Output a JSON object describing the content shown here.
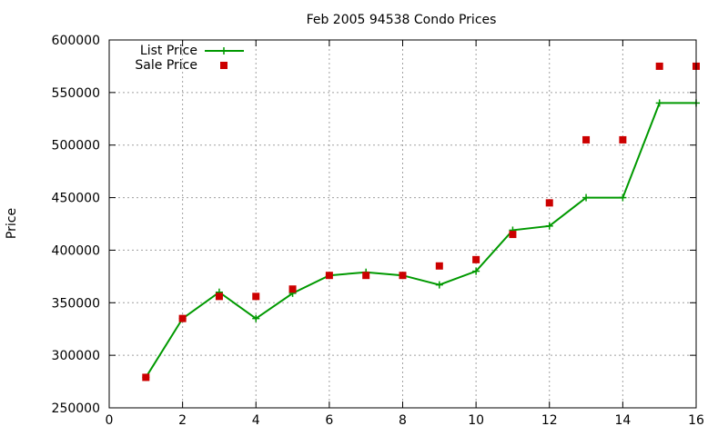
{
  "chart_data": {
    "type": "line",
    "title": "Feb 2005 94538 Condo Prices",
    "xlabel": "",
    "ylabel": "Price",
    "xlim": [
      0,
      16
    ],
    "ylim": [
      250000,
      600000
    ],
    "x_ticks": [
      0,
      2,
      4,
      6,
      8,
      10,
      12,
      14,
      16
    ],
    "y_ticks": [
      250000,
      300000,
      350000,
      400000,
      450000,
      500000,
      550000,
      600000
    ],
    "grid": true,
    "legend_position": "top-left",
    "series": [
      {
        "name": "List Price",
        "style": "line-plus",
        "color": "#009900",
        "x": [
          1,
          2,
          3,
          4,
          5,
          6,
          7,
          8,
          9,
          10,
          11,
          12,
          13,
          14,
          15,
          16
        ],
        "y": [
          279000,
          335000,
          360000,
          335000,
          359000,
          376000,
          379000,
          376000,
          367000,
          380000,
          419000,
          423000,
          450000,
          450000,
          540000,
          540000
        ]
      },
      {
        "name": "Sale Price",
        "style": "square-points",
        "color": "#cc0000",
        "x": [
          1,
          2,
          3,
          4,
          5,
          6,
          7,
          8,
          9,
          10,
          11,
          12,
          13,
          14,
          15,
          16
        ],
        "y": [
          279000,
          335000,
          356000,
          356000,
          363000,
          376000,
          376000,
          376000,
          385000,
          391000,
          415000,
          445000,
          505000,
          505000,
          575000,
          575000
        ]
      }
    ]
  }
}
